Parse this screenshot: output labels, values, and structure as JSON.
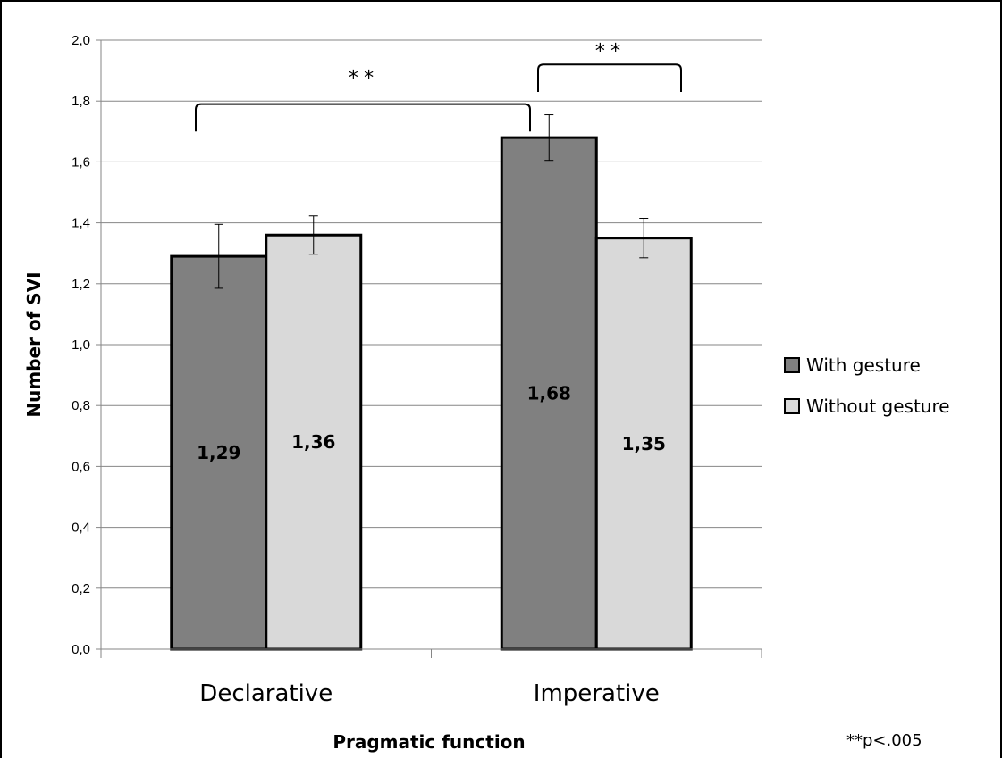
{
  "chart_data": {
    "type": "bar",
    "categories": [
      "Declarative",
      "Imperative"
    ],
    "series": [
      {
        "name": "With gesture",
        "values": [
          1.29,
          1.68
        ],
        "errors": [
          0.105,
          0.075
        ],
        "color": "#808080"
      },
      {
        "name": "Without gesture",
        "values": [
          1.36,
          1.35
        ],
        "errors": [
          0.063,
          0.065
        ],
        "color": "#d9d9d9"
      }
    ],
    "data_labels": [
      [
        "1,29",
        "1,68"
      ],
      [
        "1,36",
        "1,35"
      ]
    ],
    "ylim": [
      0,
      2.0
    ],
    "yticks": [
      "0,0",
      "0,2",
      "0,4",
      "0,6",
      "0,8",
      "1,0",
      "1,2",
      "1,4",
      "1,6",
      "1,8",
      "2,0"
    ],
    "ylabel": "Number of SVI",
    "xlabel": "Pragmatic function",
    "grid": true,
    "legend_position": "right",
    "annotations": [
      {
        "text": "**",
        "between": "Declarative and Imperative (With gesture)"
      },
      {
        "text": "**",
        "between": "Imperative With gesture and Without gesture"
      }
    ],
    "footnote": "**p<.005"
  }
}
